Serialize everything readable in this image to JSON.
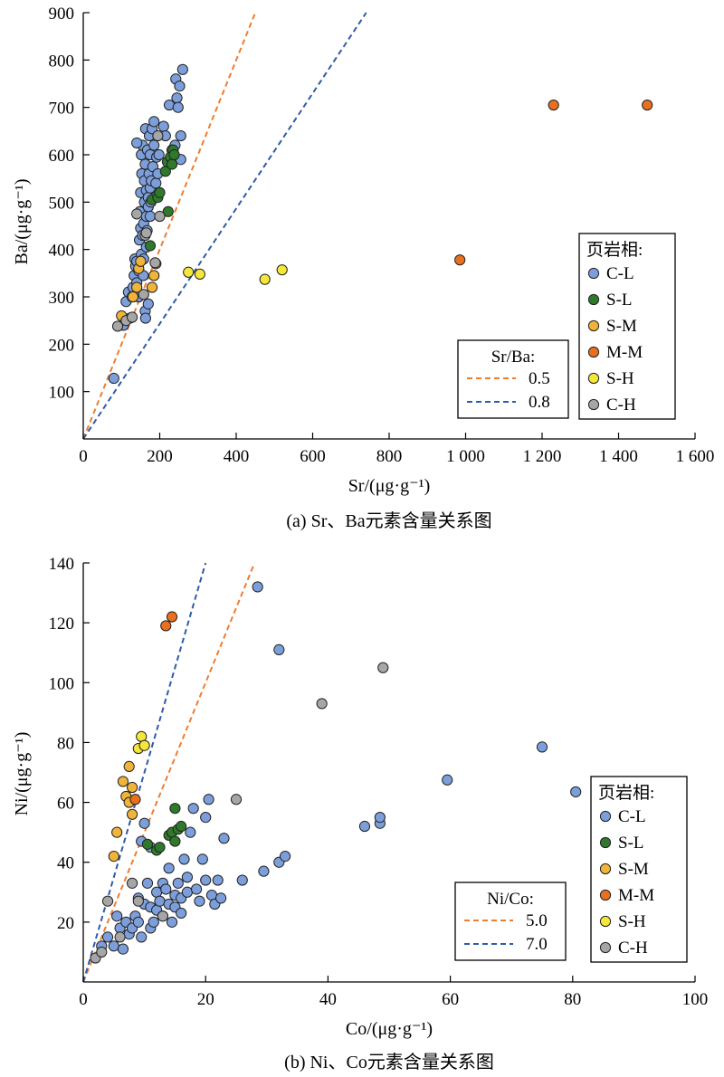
{
  "chart_data": [
    {
      "type": "scatter",
      "caption": "(a) Sr、Ba元素含量关系图",
      "xlabel": "Sr/(μg·g⁻¹)",
      "ylabel": "Ba/(μg·g⁻¹)",
      "xlim": [
        0,
        1600
      ],
      "ylim": [
        0,
        900
      ],
      "xticks": [
        {
          "value": 0,
          "label": "0"
        },
        {
          "value": 200,
          "label": "200"
        },
        {
          "value": 400,
          "label": "400"
        },
        {
          "value": 600,
          "label": "600"
        },
        {
          "value": 800,
          "label": "800"
        },
        {
          "value": 1000,
          "label": "1 000"
        },
        {
          "value": 1200,
          "label": "1 200"
        },
        {
          "value": 1400,
          "label": "1 400"
        },
        {
          "value": 1600,
          "label": "1 600"
        }
      ],
      "yticks": [
        {
          "value": 100,
          "label": "100"
        },
        {
          "value": 200,
          "label": "200"
        },
        {
          "value": 300,
          "label": "300"
        },
        {
          "value": 400,
          "label": "400"
        },
        {
          "value": 500,
          "label": "500"
        },
        {
          "value": 600,
          "label": "600"
        },
        {
          "value": 700,
          "label": "700"
        },
        {
          "value": 800,
          "label": "800"
        },
        {
          "value": 900,
          "label": "900"
        }
      ],
      "grid": false,
      "facies_legend": {
        "title": "页岩相:",
        "placement": "right"
      },
      "lines_legend": {
        "title": "Sr/Ba:",
        "placement": "bottom-right"
      },
      "ratio_lines": [
        {
          "name": "0.5",
          "color": "#ED7D31",
          "points": [
            [
              0,
              0
            ],
            [
              450,
              900
            ]
          ]
        },
        {
          "name": "0.8",
          "color": "#2F5BA8",
          "points": [
            [
              0,
              0
            ],
            [
              740,
              900
            ]
          ]
        }
      ],
      "series": [
        {
          "name": "C-L",
          "color": "#7C9FDB",
          "points": [
            [
              80,
              128
            ],
            [
              105,
              240
            ],
            [
              112,
              290
            ],
            [
              118,
              310
            ],
            [
              122,
              255
            ],
            [
              128,
              300
            ],
            [
              130,
              320
            ],
            [
              133,
              345
            ],
            [
              135,
              380
            ],
            [
              137,
              365
            ],
            [
              140,
              330
            ],
            [
              140,
              375
            ],
            [
              142,
              305
            ],
            [
              145,
              300
            ],
            [
              145,
              355
            ],
            [
              147,
              420
            ],
            [
              148,
              480
            ],
            [
              150,
              445
            ],
            [
              150,
              520
            ],
            [
              152,
              390
            ],
            [
              152,
              600
            ],
            [
              153,
              560
            ],
            [
              155,
              430
            ],
            [
              155,
              620
            ],
            [
              157,
              345
            ],
            [
              158,
              380
            ],
            [
              158,
              455
            ],
            [
              160,
              500
            ],
            [
              160,
              545
            ],
            [
              162,
              270
            ],
            [
              162,
              580
            ],
            [
              163,
              255
            ],
            [
              163,
              655
            ],
            [
              165,
              405
            ],
            [
              165,
              470
            ],
            [
              165,
              525
            ],
            [
              167,
              440
            ],
            [
              168,
              610
            ],
            [
              170,
              285
            ],
            [
              170,
              490
            ],
            [
              170,
              510
            ],
            [
              172,
              560
            ],
            [
              173,
              640
            ],
            [
              175,
              470
            ],
            [
              175,
              530
            ],
            [
              175,
              600
            ],
            [
              177,
              500
            ],
            [
              178,
              545
            ],
            [
              180,
              655
            ],
            [
              182,
              575
            ],
            [
              185,
              670
            ],
            [
              185,
              620
            ],
            [
              188,
              510
            ],
            [
              190,
              540
            ],
            [
              192,
              595
            ],
            [
              195,
              560
            ],
            [
              198,
              600
            ],
            [
              210,
              660
            ],
            [
              215,
              640
            ],
            [
              225,
              705
            ],
            [
              240,
              620
            ],
            [
              242,
              760
            ],
            [
              245,
              720
            ],
            [
              248,
              700
            ],
            [
              252,
              745
            ],
            [
              255,
              590
            ],
            [
              260,
              780
            ],
            [
              255,
              640
            ],
            [
              232,
              610
            ],
            [
              140,
              625
            ]
          ]
        },
        {
          "name": "S-L",
          "color": "#2E7A2A",
          "points": [
            [
              175,
              408
            ],
            [
              180,
              505
            ],
            [
              195,
              510
            ],
            [
              200,
              520
            ],
            [
              215,
              565
            ],
            [
              220,
              585
            ],
            [
              222,
              480
            ],
            [
              228,
              595
            ],
            [
              232,
              580
            ],
            [
              235,
              610
            ],
            [
              238,
              600
            ]
          ]
        },
        {
          "name": "S-M",
          "color": "#F0B43A",
          "points": [
            [
              100,
              260
            ],
            [
              130,
              300
            ],
            [
              140,
              320
            ],
            [
              145,
              360
            ],
            [
              150,
              375
            ],
            [
              180,
              320
            ],
            [
              185,
              345
            ],
            [
              190,
              370
            ]
          ]
        },
        {
          "name": "M-M",
          "color": "#E8701F",
          "points": [
            [
              985,
              378
            ],
            [
              1230,
              705
            ],
            [
              1475,
              705
            ]
          ]
        },
        {
          "name": "S-H",
          "color": "#F5E63A",
          "points": [
            [
              275,
              352
            ],
            [
              305,
              348
            ],
            [
              475,
              337
            ],
            [
              520,
              357
            ]
          ]
        },
        {
          "name": "C-H",
          "color": "#A6A6A6",
          "points": [
            [
              90,
              238
            ],
            [
              112,
              250
            ],
            [
              128,
              257
            ],
            [
              140,
              475
            ],
            [
              158,
              305
            ],
            [
              162,
              430
            ],
            [
              165,
              435
            ],
            [
              188,
              372
            ],
            [
              195,
              640
            ],
            [
              200,
              470
            ]
          ]
        }
      ]
    },
    {
      "type": "scatter",
      "caption": "(b) Ni、Co元素含量关系图",
      "xlabel": "Co/(μg·g⁻¹)",
      "ylabel": "Ni/(μg·g⁻¹)",
      "xlim": [
        0,
        100
      ],
      "ylim": [
        0,
        140
      ],
      "xticks": [
        {
          "value": 0,
          "label": "0"
        },
        {
          "value": 20,
          "label": "20"
        },
        {
          "value": 40,
          "label": "40"
        },
        {
          "value": 60,
          "label": "60"
        },
        {
          "value": 80,
          "label": "80"
        },
        {
          "value": 100,
          "label": "100"
        }
      ],
      "yticks": [
        {
          "value": 20,
          "label": "20"
        },
        {
          "value": 40,
          "label": "40"
        },
        {
          "value": 60,
          "label": "60"
        },
        {
          "value": 80,
          "label": "80"
        },
        {
          "value": 100,
          "label": "100"
        },
        {
          "value": 120,
          "label": "120"
        },
        {
          "value": 140,
          "label": "140"
        }
      ],
      "grid": false,
      "facies_legend": {
        "title": "页岩相:",
        "placement": "right"
      },
      "lines_legend": {
        "title": "Ni/Co:",
        "placement": "bottom-right"
      },
      "ratio_lines": [
        {
          "name": "5.0",
          "color": "#ED7D31",
          "points": [
            [
              0,
              0
            ],
            [
              28,
              140
            ]
          ]
        },
        {
          "name": "7.0",
          "color": "#2F5BA8",
          "points": [
            [
              0,
              0
            ],
            [
              20,
              140
            ]
          ]
        }
      ],
      "series": [
        {
          "name": "C-L",
          "color": "#7C9FDB",
          "points": [
            [
              3,
              12
            ],
            [
              4,
              15
            ],
            [
              5,
              12
            ],
            [
              5.5,
              22
            ],
            [
              6,
              18
            ],
            [
              6.5,
              11
            ],
            [
              7,
              20
            ],
            [
              7.5,
              16
            ],
            [
              8,
              18
            ],
            [
              8.5,
              22
            ],
            [
              9,
              20
            ],
            [
              9,
              28
            ],
            [
              9.5,
              15
            ],
            [
              10,
              26
            ],
            [
              10,
              53
            ],
            [
              10.5,
              33
            ],
            [
              11,
              25
            ],
            [
              11,
              18
            ],
            [
              11.5,
              20
            ],
            [
              12,
              24
            ],
            [
              12,
              30
            ],
            [
              12.5,
              27
            ],
            [
              13,
              22
            ],
            [
              13,
              33
            ],
            [
              13.5,
              31
            ],
            [
              14,
              26
            ],
            [
              14,
              38
            ],
            [
              14.5,
              20
            ],
            [
              15,
              25
            ],
            [
              15,
              29
            ],
            [
              15.5,
              33
            ],
            [
              16,
              23
            ],
            [
              16,
              28
            ],
            [
              16.5,
              41
            ],
            [
              17,
              30
            ],
            [
              17,
              35
            ],
            [
              17.5,
              50
            ],
            [
              18,
              58
            ],
            [
              18.5,
              31
            ],
            [
              19,
              27
            ],
            [
              19.5,
              41
            ],
            [
              20,
              34
            ],
            [
              20,
              55
            ],
            [
              20.5,
              61
            ],
            [
              21,
              29
            ],
            [
              21.5,
              26
            ],
            [
              22,
              34
            ],
            [
              22.5,
              28
            ],
            [
              23,
              48
            ],
            [
              26,
              34
            ],
            [
              29.5,
              37
            ],
            [
              32,
              40
            ],
            [
              33,
              42
            ],
            [
              28.5,
              132
            ],
            [
              32,
              111
            ],
            [
              46,
              52
            ],
            [
              48.5,
              53
            ],
            [
              48.5,
              55
            ],
            [
              59.5,
              67.5
            ],
            [
              75,
              78.5
            ],
            [
              80.5,
              63.5
            ],
            [
              9.5,
              47
            ],
            [
              11,
              45
            ]
          ]
        },
        {
          "name": "S-L",
          "color": "#2E7A2A",
          "points": [
            [
              10.5,
              46
            ],
            [
              12,
              44
            ],
            [
              12.5,
              45
            ],
            [
              14,
              49
            ],
            [
              14.5,
              50
            ],
            [
              15,
              58
            ],
            [
              15,
              47
            ],
            [
              15.5,
              51
            ],
            [
              16,
              52
            ]
          ]
        },
        {
          "name": "S-M",
          "color": "#F0B43A",
          "points": [
            [
              5,
              42
            ],
            [
              5.5,
              50
            ],
            [
              6.5,
              67
            ],
            [
              7,
              62
            ],
            [
              7.5,
              60
            ],
            [
              7.5,
              72
            ],
            [
              8,
              56
            ],
            [
              8,
              65
            ]
          ]
        },
        {
          "name": "M-M",
          "color": "#E8701F",
          "points": [
            [
              8.5,
              61
            ],
            [
              13.5,
              119
            ],
            [
              14.5,
              122
            ]
          ]
        },
        {
          "name": "S-H",
          "color": "#F5E63A",
          "points": [
            [
              9,
              78
            ],
            [
              9.5,
              82
            ],
            [
              10,
              79
            ]
          ]
        },
        {
          "name": "C-H",
          "color": "#A6A6A6",
          "points": [
            [
              2,
              8
            ],
            [
              3,
              10
            ],
            [
              4,
              27
            ],
            [
              6,
              15
            ],
            [
              8,
              33
            ],
            [
              9,
              27
            ],
            [
              13,
              22
            ],
            [
              25,
              61
            ],
            [
              39,
              93
            ],
            [
              49,
              105
            ]
          ]
        }
      ]
    }
  ]
}
